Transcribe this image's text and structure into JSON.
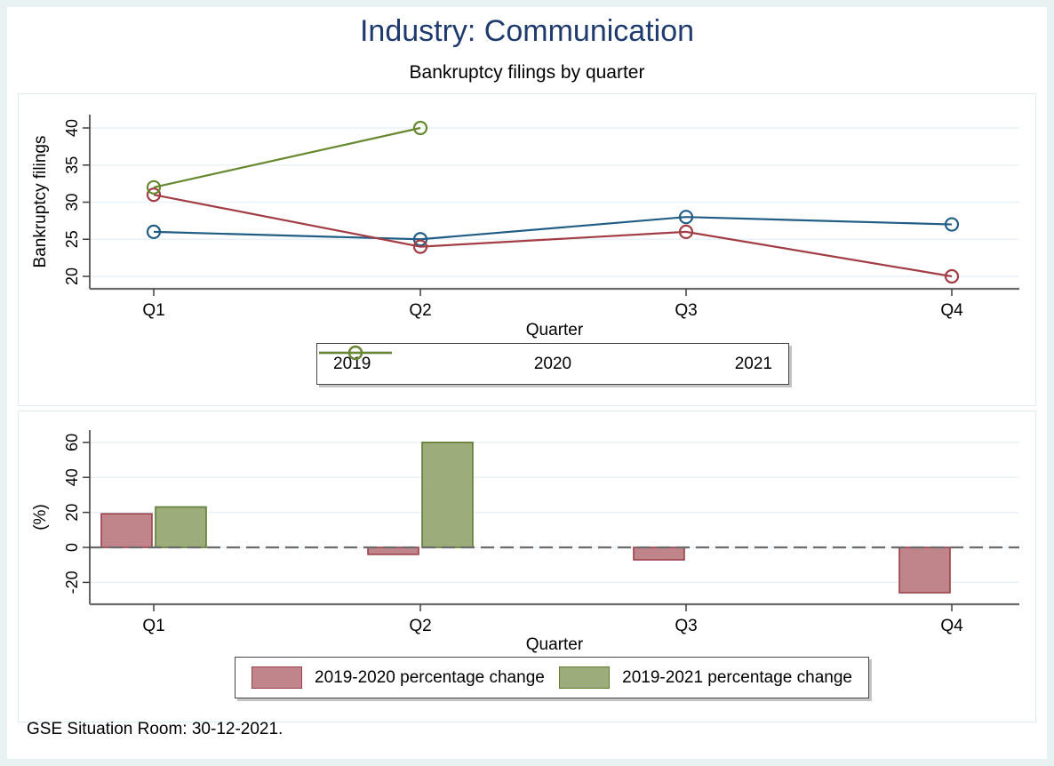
{
  "window": {
    "title": "Industry: Communication",
    "subtitle": "Bankruptcy filings by quarter",
    "source_note": "GSE Situation Room: 30-12-2021."
  },
  "colors": {
    "title_text": "#1f3b6e",
    "outer_frame": "#e9f2f3",
    "panel_border": "#dfeaee",
    "gridline": "#e9f2f8",
    "y_axis": "#3f3f3f",
    "x_axis": "#6a6a6a",
    "zero_line": "#6b6b6b",
    "legend_border": "#474747"
  },
  "chart_data": [
    {
      "type": "line",
      "panel": "top",
      "categories": [
        "Q1",
        "Q2",
        "Q3",
        "Q4"
      ],
      "series": [
        {
          "name": "2019",
          "color": "#215d85",
          "values": [
            26,
            25,
            28,
            27
          ]
        },
        {
          "name": "2020",
          "color": "#a33d44",
          "values": [
            31,
            24,
            26,
            20
          ]
        },
        {
          "name": "2021",
          "color": "#66882f",
          "values": [
            32,
            40,
            null,
            null
          ]
        }
      ],
      "marker": "hollow-circle",
      "xlabel": "Quarter",
      "ylabel": "Bankruptcy filings",
      "yticks": [
        20,
        25,
        30,
        35,
        40
      ],
      "ylim": [
        18,
        42
      ],
      "grid": true,
      "legend_position": "bottom"
    },
    {
      "type": "bar",
      "panel": "bottom",
      "categories": [
        "Q1",
        "Q2",
        "Q3",
        "Q4"
      ],
      "series": [
        {
          "name": "2019-2020 percentage change",
          "fill": "#c0858b",
          "stroke": "#9b4149",
          "values": [
            19.2,
            -4,
            -7.1,
            -25.9
          ]
        },
        {
          "name": "2019-2021 percentage change",
          "fill": "#9cad7b",
          "stroke": "#5f7d33",
          "values": [
            23.1,
            60,
            null,
            null
          ]
        }
      ],
      "xlabel": "Quarter",
      "ylabel": "(%)",
      "yticks": [
        -20,
        0,
        20,
        40,
        60
      ],
      "ylim": [
        -33,
        70
      ],
      "grid": true,
      "zero_line": "dashed",
      "legend_position": "bottom"
    }
  ]
}
